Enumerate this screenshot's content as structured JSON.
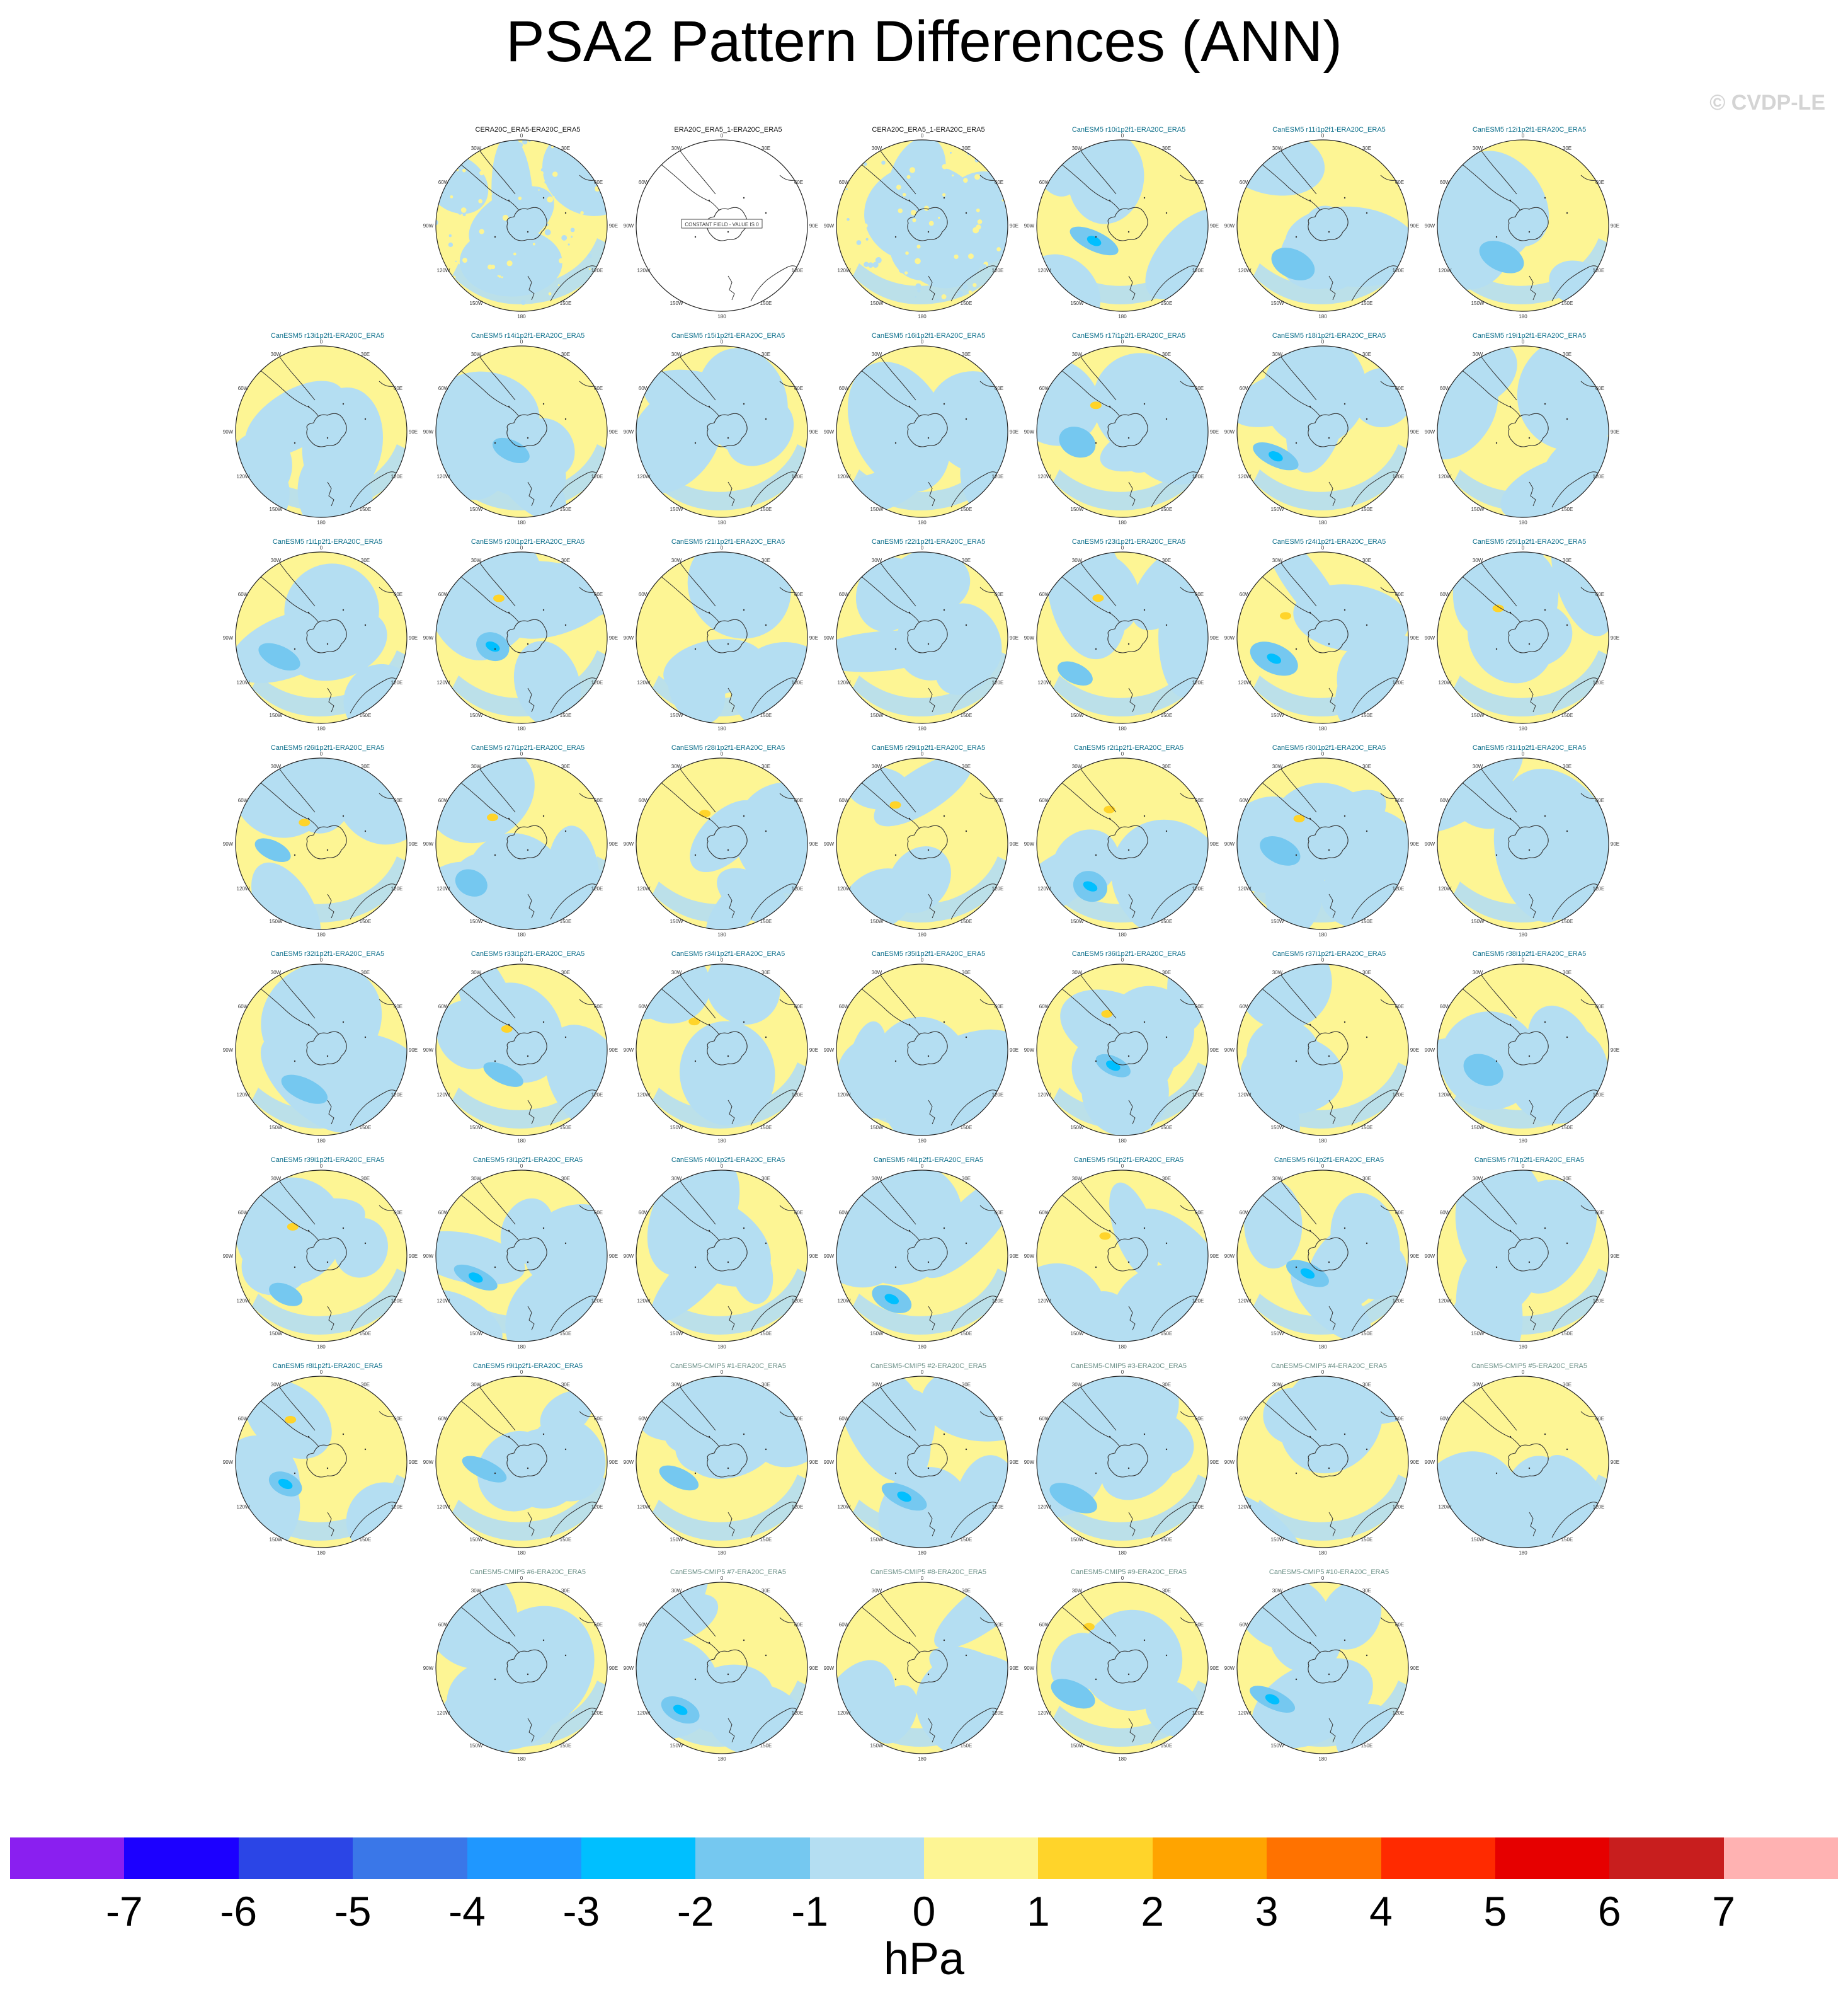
{
  "title": "PSA2 Pattern Differences (ANN)",
  "watermark": "© CVDP-LE",
  "panel_rows": [
    [
      null,
      {
        "t": "CERA20C_ERA5-ERA20C_ERA5",
        "c": "black",
        "p": "noisy"
      },
      {
        "t": "ERA20C_ERA5_1-ERA20C_ERA5",
        "c": "black",
        "p": "blank"
      },
      {
        "t": "CERA20C_ERA5_1-ERA20C_ERA5",
        "c": "black",
        "p": "noisy"
      },
      {
        "t": "CanESM5 r10i1p2f1-ERA20C_ERA5",
        "c": "teal"
      },
      {
        "t": "CanESM5 r11i1p2f1-ERA20C_ERA5",
        "c": "teal"
      },
      {
        "t": "CanESM5 r12i1p2f1-ERA20C_ERA5",
        "c": "teal"
      }
    ],
    [
      {
        "t": "CanESM5 r13i1p2f1-ERA20C_ERA5",
        "c": "teal"
      },
      {
        "t": "CanESM5 r14i1p2f1-ERA20C_ERA5",
        "c": "teal"
      },
      {
        "t": "CanESM5 r15i1p2f1-ERA20C_ERA5",
        "c": "teal"
      },
      {
        "t": "CanESM5 r16i1p2f1-ERA20C_ERA5",
        "c": "teal"
      },
      {
        "t": "CanESM5 r17i1p2f1-ERA20C_ERA5",
        "c": "teal"
      },
      {
        "t": "CanESM5 r18i1p2f1-ERA20C_ERA5",
        "c": "teal"
      },
      {
        "t": "CanESM5 r19i1p2f1-ERA20C_ERA5",
        "c": "teal"
      }
    ],
    [
      {
        "t": "CanESM5 r1i1p2f1-ERA20C_ERA5",
        "c": "teal"
      },
      {
        "t": "CanESM5 r20i1p2f1-ERA20C_ERA5",
        "c": "teal"
      },
      {
        "t": "CanESM5 r21i1p2f1-ERA20C_ERA5",
        "c": "teal"
      },
      {
        "t": "CanESM5 r22i1p2f1-ERA20C_ERA5",
        "c": "teal"
      },
      {
        "t": "CanESM5 r23i1p2f1-ERA20C_ERA5",
        "c": "teal"
      },
      {
        "t": "CanESM5 r24i1p2f1-ERA20C_ERA5",
        "c": "teal"
      },
      {
        "t": "CanESM5 r25i1p2f1-ERA20C_ERA5",
        "c": "teal"
      }
    ],
    [
      {
        "t": "CanESM5 r26i1p2f1-ERA20C_ERA5",
        "c": "teal"
      },
      {
        "t": "CanESM5 r27i1p2f1-ERA20C_ERA5",
        "c": "teal"
      },
      {
        "t": "CanESM5 r28i1p2f1-ERA20C_ERA5",
        "c": "teal"
      },
      {
        "t": "CanESM5 r29i1p2f1-ERA20C_ERA5",
        "c": "teal"
      },
      {
        "t": "CanESM5 r2i1p2f1-ERA20C_ERA5",
        "c": "teal"
      },
      {
        "t": "CanESM5 r30i1p2f1-ERA20C_ERA5",
        "c": "teal"
      },
      {
        "t": "CanESM5 r31i1p2f1-ERA20C_ERA5",
        "c": "teal"
      }
    ],
    [
      {
        "t": "CanESM5 r32i1p2f1-ERA20C_ERA5",
        "c": "teal"
      },
      {
        "t": "CanESM5 r33i1p2f1-ERA20C_ERA5",
        "c": "teal"
      },
      {
        "t": "CanESM5 r34i1p2f1-ERA20C_ERA5",
        "c": "teal"
      },
      {
        "t": "CanESM5 r35i1p2f1-ERA20C_ERA5",
        "c": "teal"
      },
      {
        "t": "CanESM5 r36i1p2f1-ERA20C_ERA5",
        "c": "teal"
      },
      {
        "t": "CanESM5 r37i1p2f1-ERA20C_ERA5",
        "c": "teal"
      },
      {
        "t": "CanESM5 r38i1p2f1-ERA20C_ERA5",
        "c": "teal"
      }
    ],
    [
      {
        "t": "CanESM5 r39i1p2f1-ERA20C_ERA5",
        "c": "teal"
      },
      {
        "t": "CanESM5 r3i1p2f1-ERA20C_ERA5",
        "c": "teal"
      },
      {
        "t": "CanESM5 r40i1p2f1-ERA20C_ERA5",
        "c": "teal"
      },
      {
        "t": "CanESM5 r4i1p2f1-ERA20C_ERA5",
        "c": "teal"
      },
      {
        "t": "CanESM5 r5i1p2f1-ERA20C_ERA5",
        "c": "teal"
      },
      {
        "t": "CanESM5 r6i1p2f1-ERA20C_ERA5",
        "c": "teal"
      },
      {
        "t": "CanESM5 r7i1p2f1-ERA20C_ERA5",
        "c": "teal"
      }
    ],
    [
      {
        "t": "CanESM5 r8i1p2f1-ERA20C_ERA5",
        "c": "teal"
      },
      {
        "t": "CanESM5 r9i1p2f1-ERA20C_ERA5",
        "c": "teal"
      },
      {
        "t": "CanESM5-CMIP5 #1-ERA20C_ERA5",
        "c": "gray"
      },
      {
        "t": "CanESM5-CMIP5 #2-ERA20C_ERA5",
        "c": "gray"
      },
      {
        "t": "CanESM5-CMIP5 #3-ERA20C_ERA5",
        "c": "gray"
      },
      {
        "t": "CanESM5-CMIP5 #4-ERA20C_ERA5",
        "c": "gray"
      },
      {
        "t": "CanESM5-CMIP5 #5-ERA20C_ERA5",
        "c": "gray"
      }
    ],
    [
      null,
      {
        "t": "CanESM5-CMIP5 #6-ERA20C_ERA5",
        "c": "gray"
      },
      {
        "t": "CanESM5-CMIP5 #7-ERA20C_ERA5",
        "c": "gray"
      },
      {
        "t": "CanESM5-CMIP5 #8-ERA20C_ERA5",
        "c": "gray"
      },
      {
        "t": "CanESM5-CMIP5 #9-ERA20C_ERA5",
        "c": "gray"
      },
      {
        "t": "CanESM5-CMIP5 #10-ERA20C_ERA5",
        "c": "gray"
      },
      null
    ]
  ],
  "map_labels": {
    "top": "0",
    "r1": "30E",
    "r2": "60E",
    "r3": "90E",
    "r4": "120E",
    "r5": "150E",
    "bottom": "180",
    "l5": "150W",
    "l4": "120W",
    "l3": "90W",
    "l2": "60W",
    "l1": "30W"
  },
  "constant_field_label": "CONSTANT FIELD - VALUE IS 0",
  "title_colors": {
    "black": "#111111",
    "teal": "#0b6e8a",
    "gray": "#6a8f86"
  },
  "colorbar": {
    "colors": [
      "#8a1ff0",
      "#1c00ff",
      "#2b45e6",
      "#3a77e8",
      "#1f97ff",
      "#00bfff",
      "#75c8f0",
      "#b4def2",
      "#fdf594",
      "#ffd42a",
      "#ffa400",
      "#ff7200",
      "#ff2a00",
      "#e60000",
      "#c81e1e",
      "#ffb2b2"
    ],
    "ticks": [
      "-7",
      "-6",
      "-5",
      "-4",
      "-3",
      "-2",
      "-1",
      "0",
      "1",
      "2",
      "3",
      "4",
      "5",
      "6",
      "7"
    ],
    "units": "hPa"
  }
}
